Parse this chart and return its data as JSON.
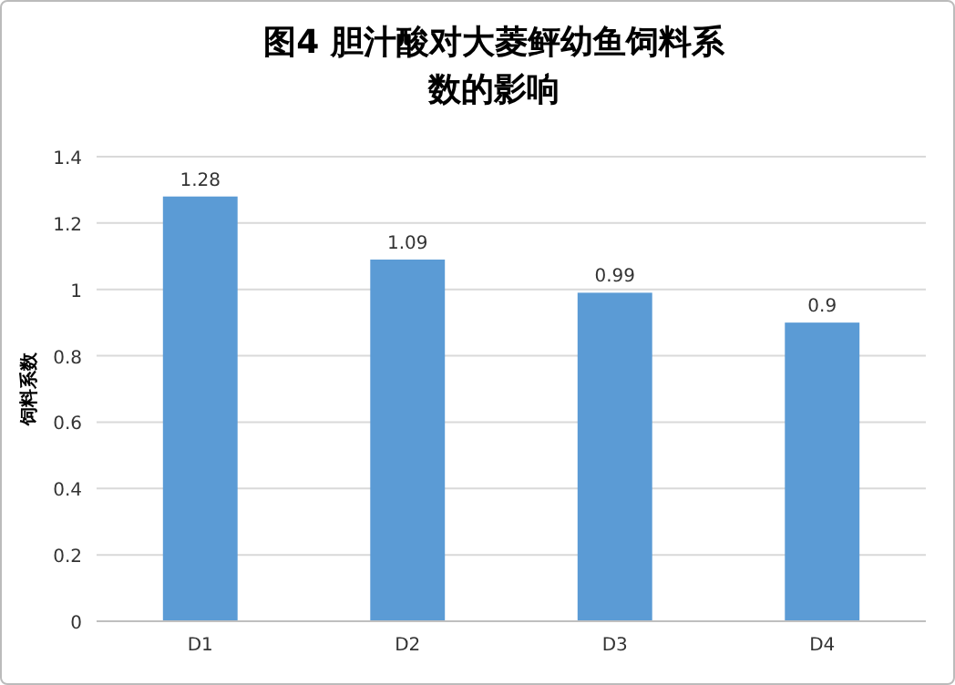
{
  "chart_data": {
    "type": "bar",
    "title": "图4 胆汁酸对大菱鲆幼鱼饲料系数的影响",
    "ylabel": "饲料系数",
    "categories": [
      "D1",
      "D2",
      "D3",
      "D4"
    ],
    "values": [
      1.28,
      1.09,
      0.99,
      0.9
    ],
    "color": "#5b9bd5",
    "ylim": [
      0,
      1.4
    ],
    "yticks": [
      0,
      0.2,
      0.4,
      0.6,
      0.8,
      1,
      1.2,
      1.4
    ],
    "grid": "y",
    "data_labels": true
  }
}
